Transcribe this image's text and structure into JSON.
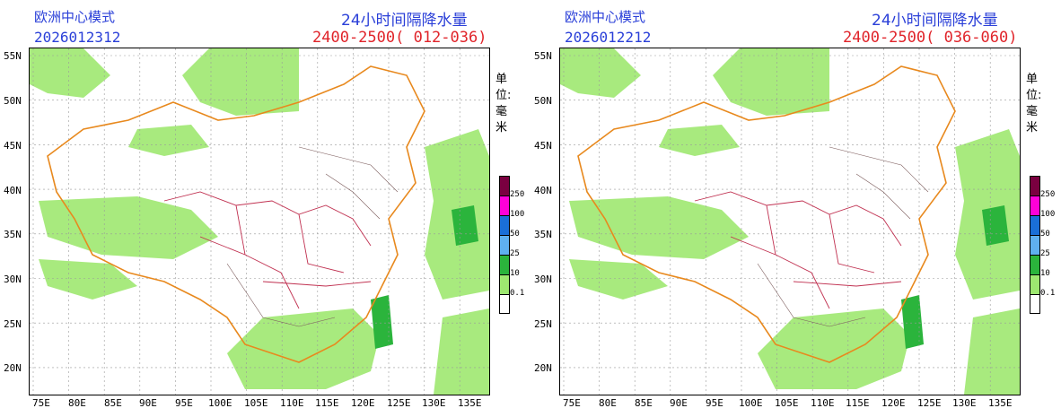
{
  "panels": [
    {
      "model": "欧洲中心模式",
      "date": "2026012312",
      "variable": "24小时间隔降水量",
      "range": "2400-2500( 012-036)"
    },
    {
      "model": "欧洲中心模式",
      "date": "2026012212",
      "variable": "24小时间隔降水量",
      "range": "2400-2500( 036-060)"
    }
  ],
  "unit": "单位: 毫米",
  "lat_labels": [
    "55N",
    "50N",
    "45N",
    "40N",
    "35N",
    "30N",
    "25N",
    "20N"
  ],
  "lon_labels": [
    "75E",
    "80E",
    "85E",
    "90E",
    "95E",
    "100E",
    "105E",
    "110E",
    "115E",
    "120E",
    "125E",
    "130E",
    "135E"
  ],
  "legend": {
    "levels": [
      "250",
      "100",
      "50",
      "25",
      "10",
      "0.1"
    ],
    "colors": [
      "#7a0040",
      "#ff00d8",
      "#1a6fd8",
      "#5fb0f0",
      "#2bb43c",
      "#9ee870",
      "#ffffff"
    ]
  },
  "colors": {
    "title_blue": "#2a3fd8",
    "title_red": "#e0242a",
    "precip_light": "#9ee870",
    "precip_mid": "#2bb43c",
    "boundary": "#e8891e",
    "province": "#c03050",
    "grid": "#999999"
  }
}
